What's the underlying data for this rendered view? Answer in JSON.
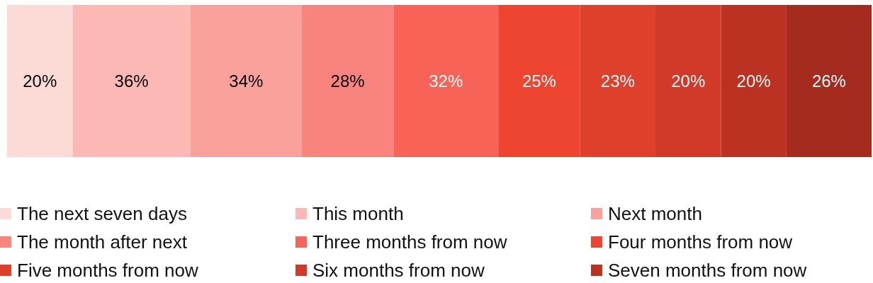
{
  "chart_data": {
    "type": "bar",
    "orientation": "horizontal",
    "stacked": true,
    "categories": [
      null
    ],
    "xlim": [
      0,
      264
    ],
    "legend": "bottom",
    "series": [
      {
        "name": "The next seven days",
        "color": "#fcdad5",
        "values": [
          20
        ],
        "value_labels": [
          "20%"
        ]
      },
      {
        "name": "This month",
        "color": "#fbb8b4",
        "values": [
          36
        ],
        "value_labels": [
          "36%"
        ]
      },
      {
        "name": "Next month",
        "color": "#f9a19a",
        "values": [
          34
        ],
        "value_labels": [
          "34%"
        ]
      },
      {
        "name": "The month after next",
        "color": "#f8847d",
        "values": [
          28
        ],
        "value_labels": [
          "28%"
        ]
      },
      {
        "name": "Three months from now",
        "color": "#f86357",
        "values": [
          32
        ],
        "value_labels": [
          "32%"
        ]
      },
      {
        "name": "Four months from now",
        "color": "#ee4530",
        "values": [
          25
        ],
        "value_labels": [
          "25%"
        ]
      },
      {
        "name": "Five months from now",
        "color": "#df402c",
        "values": [
          23
        ],
        "value_labels": [
          "23%"
        ]
      },
      {
        "name": "Six months from now",
        "color": "#d13a28",
        "values": [
          20
        ],
        "value_labels": [
          "20%"
        ]
      },
      {
        "name": "Seven months from now",
        "color": "#bb3223",
        "values": [
          20
        ],
        "value_labels": [
          "20%"
        ]
      },
      {
        "color": "#a52b1f",
        "values": [
          26
        ],
        "value_labels": [
          "26%"
        ]
      }
    ]
  }
}
